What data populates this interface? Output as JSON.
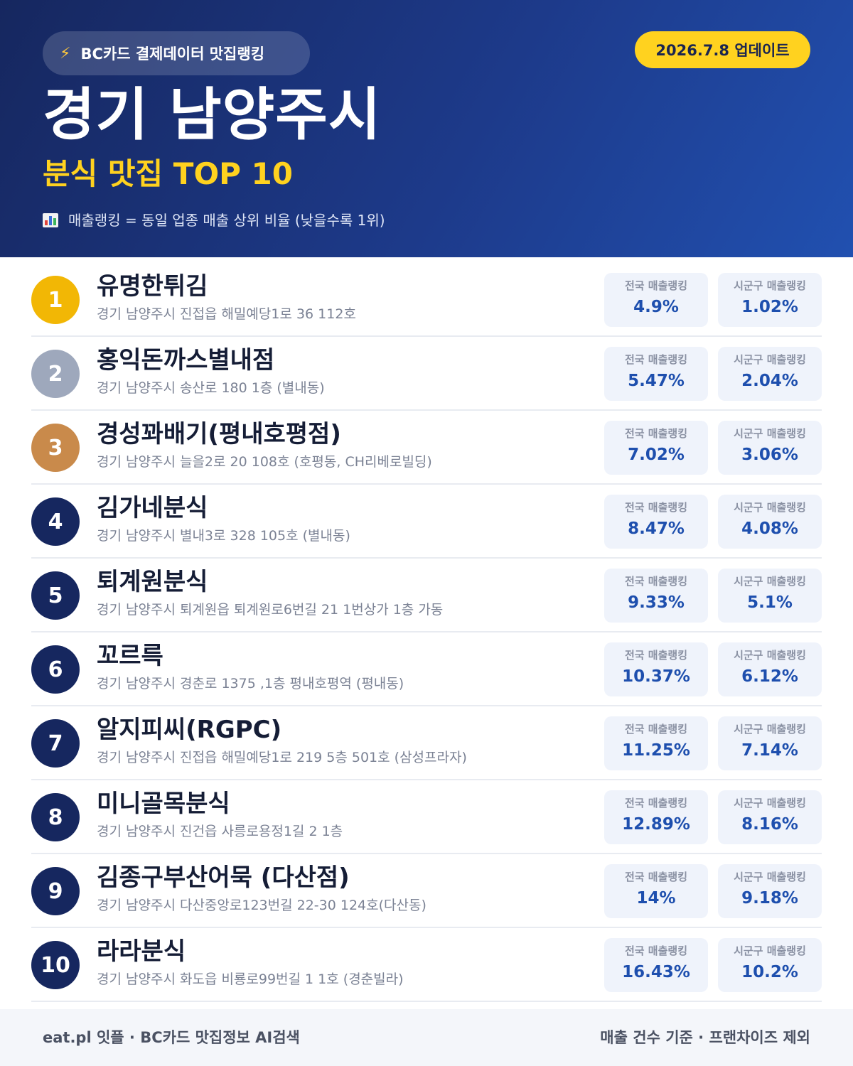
{
  "header": {
    "source_badge": "BC카드 결제데이터 맛집랭킹",
    "update_badge": "2026.7.8 업데이트",
    "city": "경기 남양주시",
    "subtitle": "분식 맛집 TOP 10",
    "note": "매출랭킹 = 동일 업종 매출 상위 비율 (낮을수록 1위)"
  },
  "labels": {
    "national": "전국 매출랭킹",
    "local": "시군구 매출랭킹"
  },
  "restaurants": [
    {
      "rank": "1",
      "name": "유명한튀김",
      "address": "경기 남양주시 진접읍 해밀예당1로 36 112호",
      "national": "4.9%",
      "local": "1.02%"
    },
    {
      "rank": "2",
      "name": "홍익돈까스별내점",
      "address": "경기 남양주시 송산로 180 1층 (별내동)",
      "national": "5.47%",
      "local": "2.04%"
    },
    {
      "rank": "3",
      "name": "경성꽈배기(평내호평점)",
      "address": "경기 남양주시 늘을2로 20 108호 (호평동, CH리베로빌딩)",
      "national": "7.02%",
      "local": "3.06%"
    },
    {
      "rank": "4",
      "name": "김가네분식",
      "address": "경기 남양주시 별내3로 328 105호 (별내동)",
      "national": "8.47%",
      "local": "4.08%"
    },
    {
      "rank": "5",
      "name": "퇴계원분식",
      "address": "경기 남양주시 퇴계원읍 퇴계원로6번길 21 1번상가 1층 가동",
      "national": "9.33%",
      "local": "5.1%"
    },
    {
      "rank": "6",
      "name": "꼬르륵",
      "address": "경기 남양주시 경춘로 1375 ,1층 평내호평역 (평내동)",
      "national": "10.37%",
      "local": "6.12%"
    },
    {
      "rank": "7",
      "name": "알지피씨(RGPC)",
      "address": "경기 남양주시 진접읍 해밀예당1로 219 5층 501호 (삼성프라자)",
      "national": "11.25%",
      "local": "7.14%"
    },
    {
      "rank": "8",
      "name": "미니골목분식",
      "address": "경기 남양주시 진건읍 사릉로용정1길 2 1층",
      "national": "12.89%",
      "local": "8.16%"
    },
    {
      "rank": "9",
      "name": "김종구부산어묵 (다산점)",
      "address": "경기 남양주시 다산중앙로123번길 22-30 124호(다산동)",
      "national": "14%",
      "local": "9.18%"
    },
    {
      "rank": "10",
      "name": "라라분식",
      "address": "경기 남양주시 화도읍 비룡로99번길 1 1호 (경춘빌라)",
      "national": "16.43%",
      "local": "10.2%"
    }
  ],
  "footer": {
    "left": "eat.pl 잇플 · BC카드 맛집정보 AI검색",
    "right": "매출 건수 기준 · 프랜차이즈 제외"
  },
  "colors": {
    "header_dark": "#16275f",
    "header_light": "#2150b0",
    "accent_yellow": "#ffd21f",
    "gold": "#f2b705",
    "silver": "#9ea8bc",
    "bronze": "#c98a4b",
    "value_blue": "#1e4fae"
  },
  "icons": {
    "source_badge_icon": "lightning-bolt-icon",
    "note_icon": "bar-chart-icon"
  }
}
